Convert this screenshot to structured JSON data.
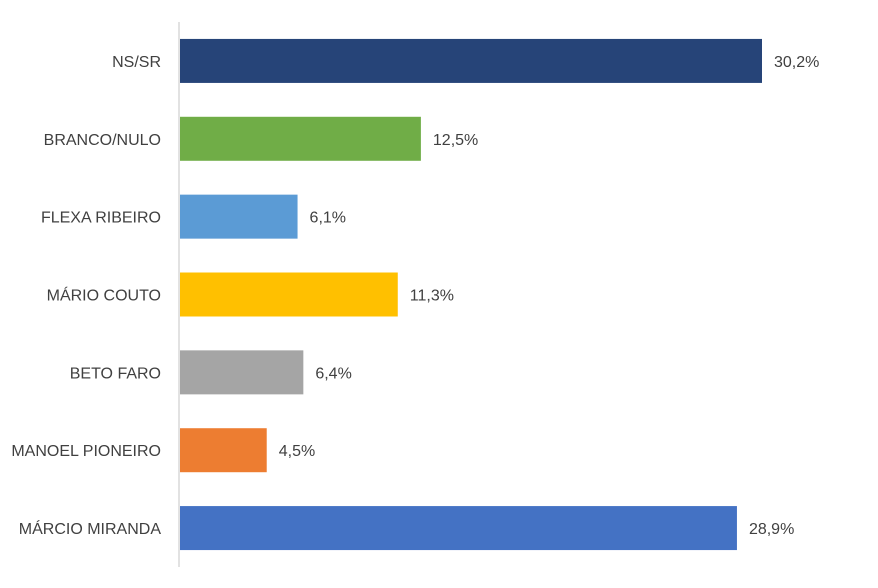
{
  "chart_data": {
    "type": "bar",
    "orientation": "horizontal",
    "categories": [
      "NS/SR",
      "BRANCO/NULO",
      "FLEXA RIBEIRO",
      "MÁRIO COUTO",
      "BETO FARO",
      "MANOEL PIONEIRO",
      "MÁRCIO MIRANDA"
    ],
    "values": [
      30.2,
      12.5,
      6.1,
      11.3,
      6.4,
      4.5,
      28.9
    ],
    "value_labels": [
      "30,2%",
      "12,5%",
      "6,1%",
      "11,3%",
      "6,4%",
      "4,5%",
      "28,9%"
    ],
    "colors": [
      "#264478",
      "#70AD47",
      "#5B9BD5",
      "#FFC000",
      "#A5A5A5",
      "#ED7D31",
      "#4472C4"
    ],
    "xlim": [
      0,
      35
    ],
    "grid": false,
    "axis_line_color": "#D9D9D9",
    "title": "",
    "xlabel": "",
    "ylabel": ""
  }
}
